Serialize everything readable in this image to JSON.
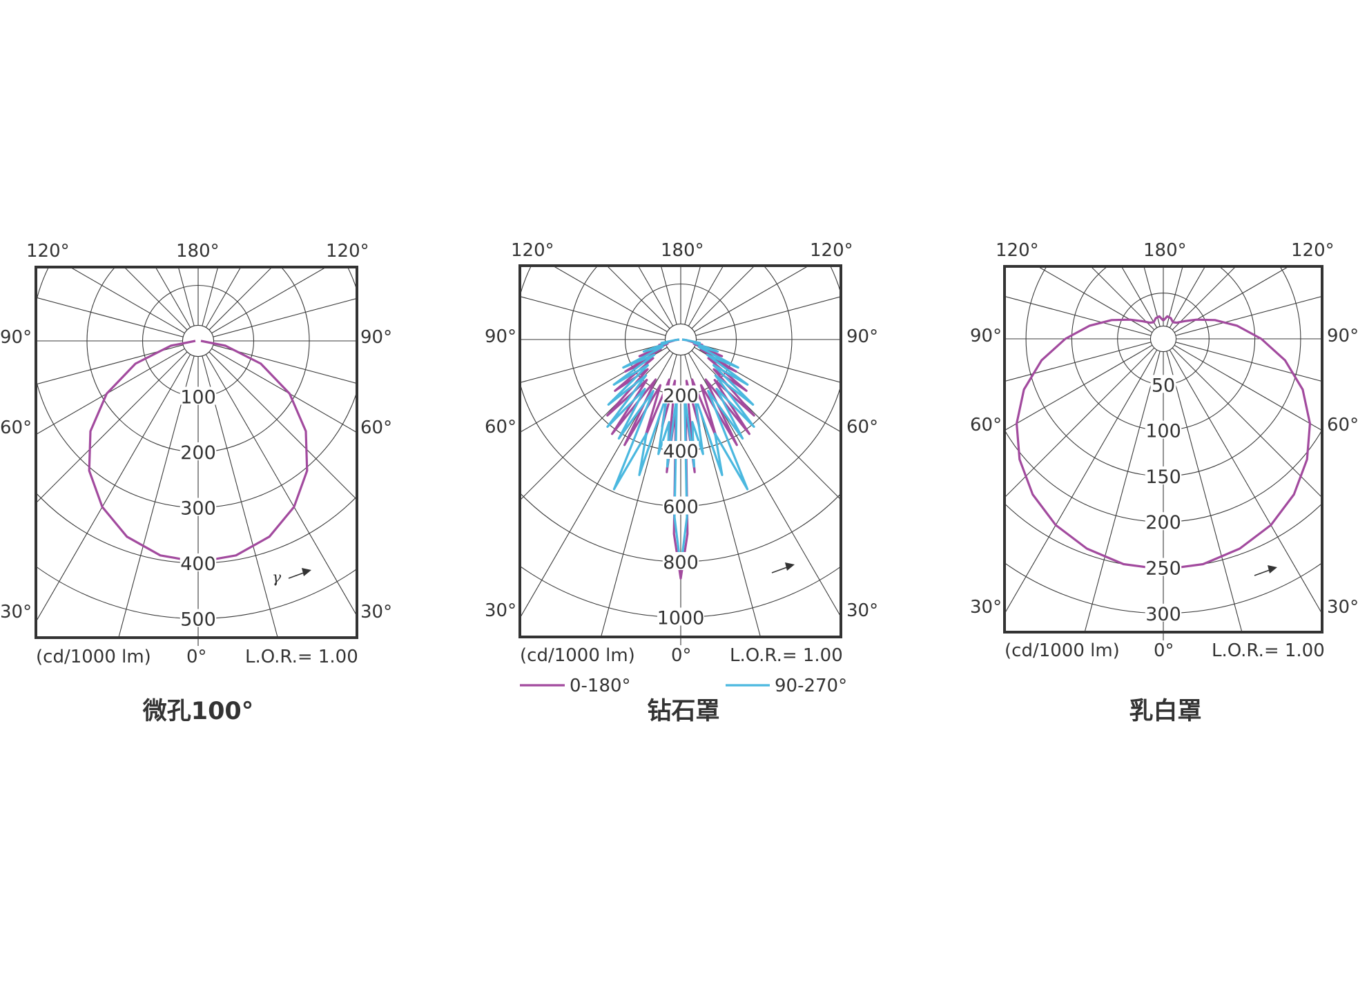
{
  "chart_data": [
    {
      "type": "polar",
      "title": "微孔100°",
      "angle_labels": [
        "120°",
        "180°",
        "120°",
        "90°",
        "90°",
        "60°",
        "60°",
        "30°",
        "30°",
        "0°"
      ],
      "unit_label": "(cd/1000 lm)",
      "lor_label": "L.O.R.= 1.00",
      "gamma_label": "γ",
      "ring_labels": [
        "100",
        "200",
        "300",
        "400",
        "500"
      ],
      "ring_values": [
        100,
        200,
        300,
        400,
        500
      ],
      "r_max": 550,
      "series": [
        {
          "color": "#a24a9e",
          "gamma": [
            0,
            10,
            20,
            30,
            40,
            50,
            60,
            70,
            80,
            90
          ],
          "values": [
            398,
            392,
            375,
            345,
            305,
            253,
            190,
            120,
            50,
            5
          ]
        }
      ]
    },
    {
      "type": "polar",
      "title": "钻石罩",
      "angle_labels": [
        "120°",
        "180°",
        "120°",
        "90°",
        "90°",
        "60°",
        "60°",
        "30°",
        "30°",
        "0°"
      ],
      "unit_label": "(cd/1000 lm)",
      "lor_label": "L.O.R.= 1.00",
      "ring_labels": [
        "200",
        "400",
        "600",
        "800",
        "1000"
      ],
      "ring_values": [
        200,
        400,
        600,
        800,
        1000
      ],
      "r_max": 1100,
      "legend": [
        {
          "name": "0-180°",
          "color": "#a24a9e"
        },
        {
          "name": "90-270°",
          "color": "#4bb8df"
        }
      ],
      "series": [
        {
          "name": "0-180°",
          "color": "#a24a9e",
          "gamma": [
            0,
            2,
            4,
            6,
            8,
            12,
            16,
            20,
            24,
            28,
            32,
            36,
            40,
            44,
            48,
            52,
            56,
            60,
            64,
            68,
            72,
            76,
            80,
            84,
            90
          ],
          "values": [
            860,
            700,
            250,
            480,
            150,
            320,
            150,
            380,
            180,
            430,
            170,
            420,
            190,
            380,
            160,
            300,
            120,
            230,
            80,
            160,
            50,
            80,
            30,
            20,
            5
          ]
        },
        {
          "name": "90-270°",
          "color": "#4bb8df",
          "gamma": [
            0,
            2,
            4,
            6,
            8,
            11,
            14,
            17,
            20,
            24,
            28,
            32,
            36,
            40,
            44,
            48,
            52,
            56,
            60,
            64,
            68,
            72,
            76,
            80,
            84,
            90
          ],
          "values": [
            820,
            640,
            200,
            460,
            300,
            420,
            200,
            510,
            360,
            590,
            210,
            420,
            220,
            410,
            180,
            350,
            150,
            290,
            110,
            230,
            70,
            140,
            50,
            70,
            20,
            5
          ]
        }
      ]
    },
    {
      "type": "polar",
      "title": "乳白罩",
      "angle_labels": [
        "120°",
        "180°",
        "120°",
        "90°",
        "90°",
        "60°",
        "60°",
        "30°",
        "30°",
        "0°"
      ],
      "unit_label": "(cd/1000 lm)",
      "lor_label": "L.O.R.= 1.00",
      "ring_labels": [
        "50",
        "100",
        "150",
        "200",
        "250",
        "300"
      ],
      "ring_values": [
        50,
        100,
        150,
        200,
        250,
        300
      ],
      "r_max": 330,
      "series": [
        {
          "color": "#a24a9e",
          "gamma": [
            0,
            10,
            20,
            30,
            40,
            50,
            60,
            70,
            80,
            90,
            100,
            110,
            120,
            130,
            140,
            150,
            160,
            170,
            180
          ],
          "values": [
            252,
            250,
            244,
            235,
            222,
            205,
            185,
            162,
            135,
            107,
            82,
            60,
            42,
            30,
            23,
            21,
            24,
            25,
            20
          ]
        }
      ]
    }
  ]
}
